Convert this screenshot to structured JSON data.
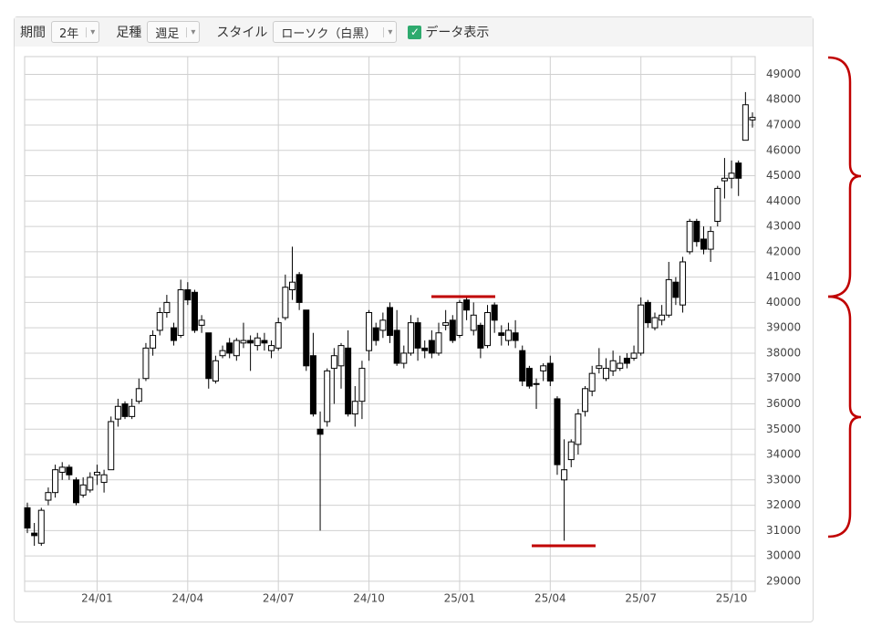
{
  "toolbar": {
    "period_label": "期間",
    "period_value": "2年",
    "bar_label": "足種",
    "bar_value": "週足",
    "style_label": "スタイル",
    "style_value": "ローソク（白黒）",
    "data_toggle": "データ表示"
  },
  "chart_data": {
    "type": "candlestick",
    "categories": [
      null,
      null,
      null,
      null,
      null,
      null,
      null,
      null,
      null,
      null,
      "24/01",
      null,
      null,
      null,
      null,
      null,
      null,
      null,
      null,
      null,
      null,
      null,
      null,
      "24/04",
      null,
      null,
      null,
      null,
      null,
      null,
      null,
      null,
      null,
      null,
      null,
      null,
      "24/07",
      null,
      null,
      null,
      null,
      null,
      null,
      null,
      null,
      null,
      null,
      null,
      null,
      "24/10",
      null,
      null,
      null,
      null,
      null,
      null,
      null,
      null,
      null,
      null,
      null,
      null,
      "25/01",
      null,
      null,
      null,
      null,
      null,
      null,
      null,
      null,
      null,
      null,
      null,
      null,
      "25/04",
      null,
      null,
      null,
      null,
      null,
      null,
      null,
      null,
      null,
      null,
      null,
      null,
      "25/07",
      null,
      null,
      null,
      null,
      null,
      null,
      null,
      null,
      null,
      null,
      null,
      null,
      "25/10",
      null,
      null,
      null
    ],
    "open": [
      31900,
      30900,
      30500,
      32200,
      32500,
      33300,
      33500,
      33000,
      32400,
      32600,
      33200,
      32900,
      33400,
      35400,
      36000,
      35500,
      36100,
      37000,
      38200,
      38900,
      39600,
      39000,
      38700,
      40500,
      40400,
      39100,
      38800,
      36900,
      37900,
      38400,
      37900,
      38400,
      38500,
      38300,
      38500,
      38100,
      38200,
      39400,
      40500,
      41100,
      39700,
      37900,
      35000,
      35300,
      37400,
      37500,
      38200,
      35600,
      36100,
      38100,
      39000,
      38900,
      39800,
      38900,
      37600,
      38000,
      39200,
      38200,
      38500,
      38000,
      39100,
      39300,
      38700,
      40100,
      38900,
      39100,
      38300,
      39900,
      38800,
      38500,
      38800,
      38100,
      37400,
      36800,
      37300,
      37600,
      36200,
      33000,
      33800,
      34400,
      35700,
      36500,
      37400,
      37000,
      37300,
      37400,
      37800,
      37800,
      38000,
      40000,
      39000,
      39300,
      39500,
      40800,
      39900,
      42000,
      43200,
      42500,
      42100,
      43200,
      44800,
      44900,
      45500,
      46400,
      47200
    ],
    "high": [
      32100,
      31300,
      31900,
      32700,
      33600,
      33700,
      33600,
      33100,
      33100,
      33300,
      33600,
      33400,
      35500,
      36200,
      36100,
      36200,
      37000,
      38400,
      38900,
      39800,
      40300,
      39200,
      40900,
      40800,
      40500,
      39500,
      38800,
      37900,
      38300,
      38600,
      38600,
      39200,
      38700,
      38800,
      38800,
      38500,
      39400,
      41100,
      42200,
      41200,
      39700,
      38800,
      35700,
      37400,
      38200,
      38400,
      38900,
      36700,
      37700,
      39700,
      39200,
      39600,
      40000,
      39700,
      38300,
      39500,
      39400,
      38500,
      38900,
      39200,
      39700,
      39500,
      40100,
      40200,
      40000,
      39200,
      39900,
      40000,
      39100,
      39200,
      39300,
      38300,
      37500,
      37000,
      37600,
      37900,
      36300,
      34600,
      34600,
      35800,
      36700,
      37500,
      38200,
      37800,
      38100,
      37900,
      38000,
      38300,
      40200,
      40100,
      39600,
      39900,
      41600,
      41000,
      41800,
      43300,
      43300,
      43000,
      43000,
      44600,
      45700,
      45600,
      45600,
      48300,
      47500
    ],
    "low": [
      30900,
      30400,
      30400,
      32000,
      32300,
      33000,
      33000,
      32000,
      32300,
      32500,
      32800,
      32500,
      33400,
      35100,
      35400,
      35400,
      36000,
      36900,
      37900,
      38700,
      39400,
      38300,
      38600,
      39900,
      38800,
      38800,
      36600,
      36800,
      37800,
      37800,
      37700,
      38200,
      37300,
      38100,
      38100,
      37800,
      38100,
      39300,
      40100,
      39700,
      37300,
      35500,
      31000,
      35100,
      36000,
      36600,
      35500,
      35100,
      35400,
      37700,
      38300,
      38600,
      38400,
      37500,
      37400,
      37900,
      37700,
      37800,
      37800,
      37900,
      38900,
      38400,
      38600,
      39300,
      38700,
      37800,
      38200,
      38800,
      38300,
      38300,
      38200,
      36700,
      36600,
      35800,
      36900,
      36700,
      33200,
      30600,
      33500,
      34000,
      35500,
      36300,
      37200,
      36900,
      37100,
      37300,
      37400,
      37700,
      37900,
      39000,
      38900,
      39100,
      39400,
      39900,
      39600,
      41900,
      42200,
      41900,
      41600,
      43000,
      44100,
      44500,
      44200,
      46400,
      46900
    ],
    "close": [
      31100,
      30800,
      31800,
      32500,
      33400,
      33500,
      33200,
      32100,
      32800,
      33100,
      33300,
      33200,
      35300,
      35900,
      35500,
      35900,
      36600,
      38200,
      38700,
      39600,
      40000,
      38500,
      40500,
      40100,
      38900,
      39300,
      37000,
      37700,
      38100,
      38000,
      38500,
      38500,
      38400,
      38600,
      38400,
      38300,
      39200,
      40600,
      40800,
      40000,
      37500,
      35600,
      34800,
      37300,
      37900,
      38300,
      35600,
      36100,
      37400,
      39600,
      38500,
      39300,
      38700,
      37600,
      38000,
      39200,
      38200,
      38100,
      38000,
      38800,
      39200,
      38500,
      40000,
      39700,
      39500,
      38200,
      39600,
      39300,
      38700,
      38900,
      38500,
      36900,
      36700,
      36800,
      37500,
      36900,
      33600,
      33400,
      34500,
      35600,
      36600,
      37200,
      37500,
      37400,
      37700,
      37600,
      37600,
      38000,
      39900,
      39200,
      39400,
      39500,
      40900,
      40200,
      41600,
      43200,
      42400,
      42100,
      42800,
      44500,
      44900,
      45100,
      44900,
      47800,
      47300
    ],
    "up_color": "#ffffff",
    "down_color": "#000000",
    "ylim": [
      28600,
      49700
    ],
    "yticks": [
      29000,
      30000,
      31000,
      32000,
      33000,
      34000,
      35000,
      36000,
      37000,
      38000,
      39000,
      40000,
      41000,
      42000,
      43000,
      44000,
      45000,
      46000,
      47000,
      48000,
      49000
    ],
    "grid": true
  }
}
